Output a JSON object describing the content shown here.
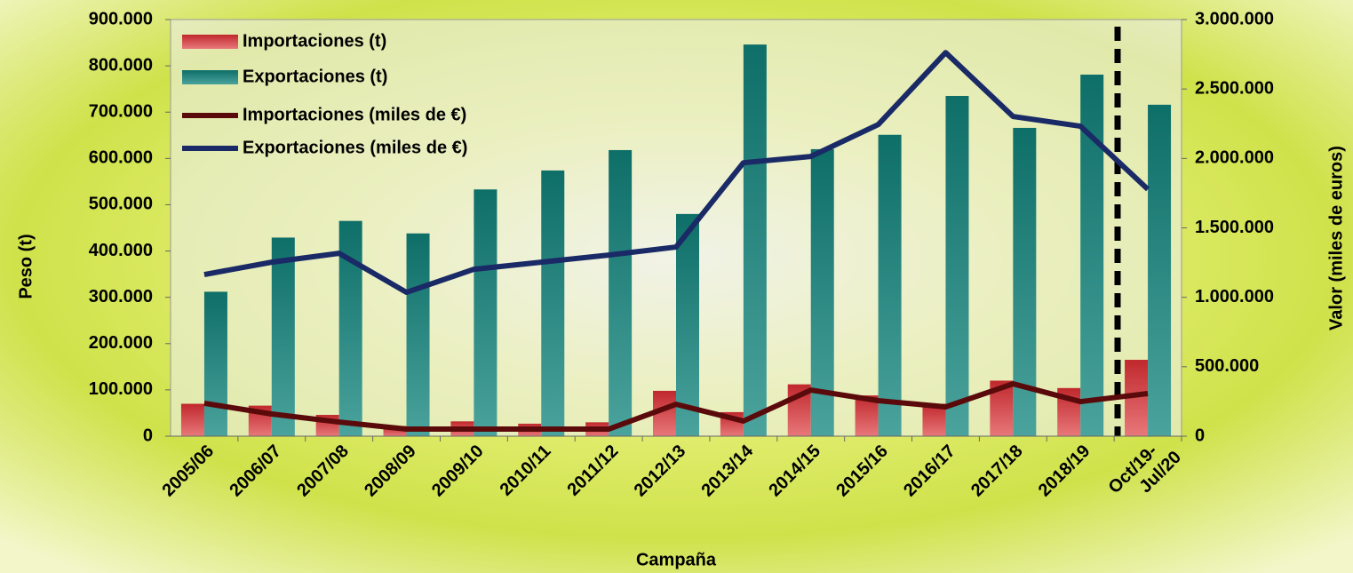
{
  "chart_data": {
    "type": "bar",
    "x_label": "Campaña",
    "y_label": "Peso (t)",
    "y2_label": "Valor (miles de euros)",
    "categories": [
      "2005/06",
      "2006/07",
      "2007/08",
      "2008/09",
      "2009/10",
      "2010/11",
      "2011/12",
      "2012/13",
      "2013/14",
      "2014/15",
      "2015/16",
      "2016/17",
      "2017/18",
      "2018/19",
      "Oct/19-\nJul/20"
    ],
    "series": [
      {
        "name": "Importaciones (t)",
        "type": "bar",
        "color": "#c0282d",
        "values": [
          70000,
          66000,
          46000,
          22000,
          32000,
          27000,
          30000,
          98000,
          52000,
          112000,
          88000,
          70000,
          120000,
          104000,
          165000
        ]
      },
      {
        "name": "Exportaciones (t)",
        "type": "bar",
        "color": "#137a72",
        "values": [
          312000,
          429000,
          465000,
          438000,
          533000,
          574000,
          618000,
          480000,
          846000,
          620000,
          651000,
          735000,
          666000,
          781000,
          716000
        ]
      },
      {
        "name": "Importaciones (miles de €)",
        "type": "line",
        "axis": "y2",
        "color": "#5a0a0a",
        "values": [
          237000,
          160000,
          102000,
          51000,
          51000,
          51000,
          51000,
          230000,
          109000,
          332000,
          256000,
          211000,
          377000,
          249000,
          307000
        ]
      },
      {
        "name": "Exportaciones (miles de €)",
        "type": "line",
        "axis": "y2",
        "color": "#1a2a66",
        "values": [
          1164000,
          1253000,
          1317000,
          1036000,
          1202000,
          1253000,
          1304000,
          1362000,
          1969000,
          2014000,
          2244000,
          2762000,
          2302000,
          2232000,
          1778000
        ]
      }
    ],
    "ylim": [
      0,
      900000
    ],
    "yticks": [
      0,
      {
        "value": 100000,
        "label": "100.000"
      },
      {
        "value": 200000,
        "label": "200.000"
      },
      {
        "value": 300000,
        "label": "300.000"
      },
      {
        "value": 400000,
        "label": "400.000"
      },
      {
        "value": 500000,
        "label": "500.000"
      },
      {
        "value": 600000,
        "label": "600.000"
      },
      {
        "value": 700000,
        "label": "700.000"
      },
      {
        "value": 800000,
        "label": "800.000"
      },
      {
        "value": 900000,
        "label": "900.000"
      }
    ],
    "y2lim": [
      0,
      3000000
    ],
    "y2ticks": [
      0,
      {
        "value": 500000,
        "label": "500.000"
      },
      {
        "value": 1000000,
        "label": "1.000.000"
      },
      {
        "value": 1500000,
        "label": "1.500.000"
      },
      {
        "value": 2000000,
        "label": "2.000.000"
      },
      {
        "value": 2500000,
        "label": "2.500.000"
      },
      {
        "value": 3000000,
        "label": "3.000.000"
      }
    ]
  }
}
